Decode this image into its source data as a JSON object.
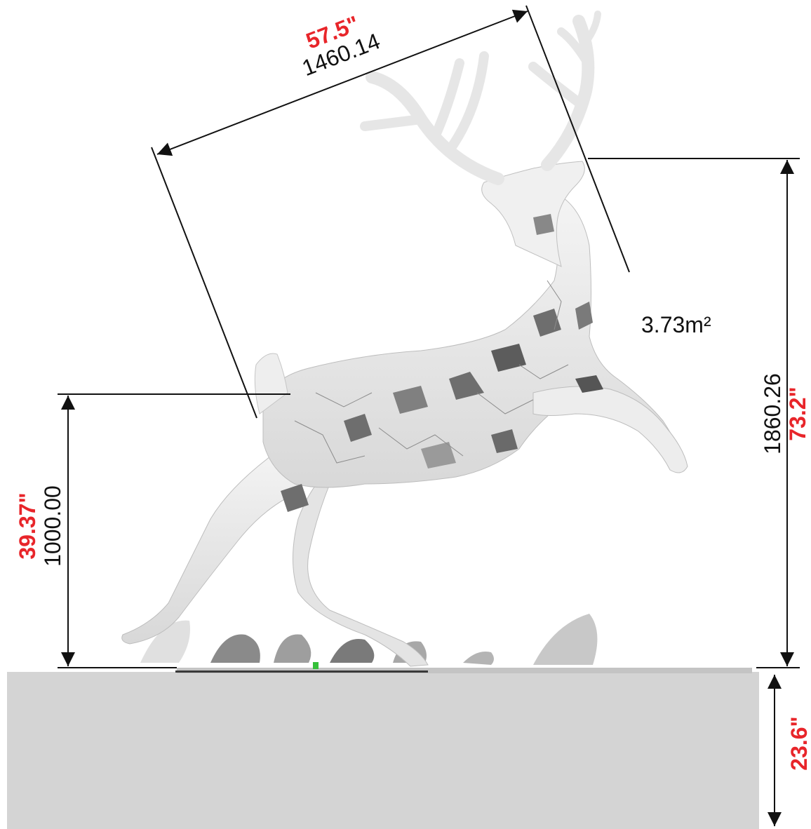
{
  "dimensions": {
    "length": {
      "metric": "1460.14",
      "imperial": "57.5\""
    },
    "height_total": {
      "metric": "1860.26",
      "imperial": "73.2\""
    },
    "height_body": {
      "metric": "1000.00",
      "imperial": "39.37\""
    },
    "base_height": {
      "imperial": "23.6\""
    }
  },
  "area": "3.73m²",
  "colors": {
    "dimension_line": "#111111",
    "metric_text": "#111111",
    "imperial_text": "#e8252a",
    "base_block": "#d4d4d4",
    "sculpture_light": "#ececec",
    "sculpture_mid": "#c9c9c9",
    "sculpture_dark": "#6e6e6e"
  }
}
